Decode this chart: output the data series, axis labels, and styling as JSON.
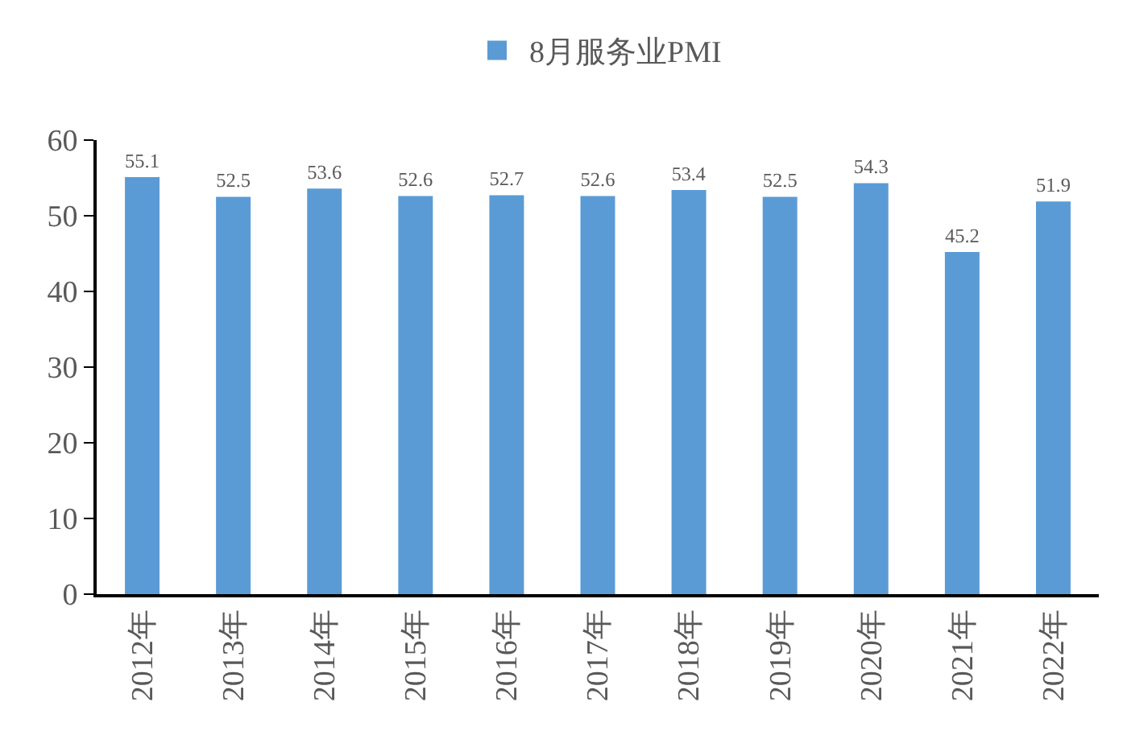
{
  "chart_data": {
    "type": "bar",
    "categories": [
      "2012年",
      "2013年",
      "2014年",
      "2015年",
      "2016年",
      "2017年",
      "2018年",
      "2019年",
      "2020年",
      "2021年",
      "2022年"
    ],
    "series": [
      {
        "name": "8月服务业PMI",
        "color": "#5b9bd5",
        "values": [
          55.1,
          52.5,
          53.6,
          52.6,
          52.7,
          52.6,
          53.4,
          52.5,
          54.3,
          45.2,
          51.9
        ]
      }
    ],
    "ylim": [
      0,
      60
    ],
    "yticks": [
      0,
      10,
      20,
      30,
      40,
      50,
      60
    ],
    "grid": false,
    "legend": "top",
    "data_labels": true
  }
}
